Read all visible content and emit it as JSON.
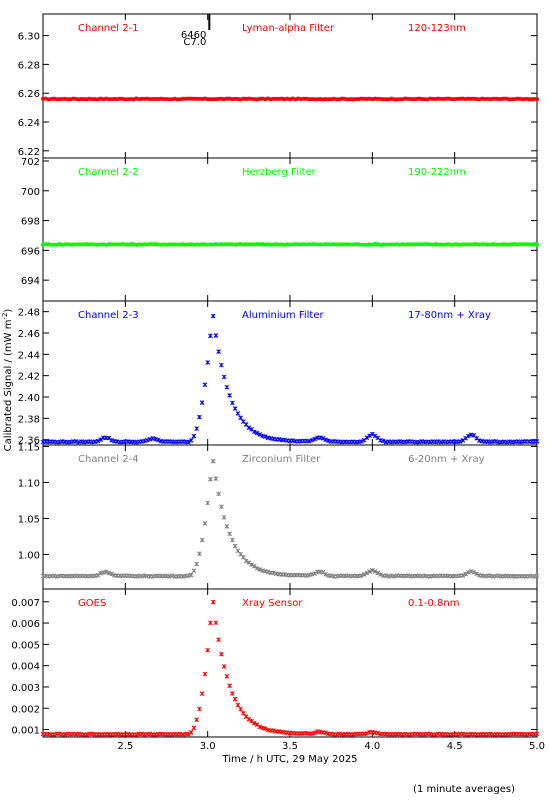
{
  "figure": {
    "ylabel": "Calibrated Signal / (mW m",
    "ylabel_sup": "-2",
    "ylabel_end": ")",
    "xlabel": "Time / h UTC, 29 May 2025",
    "note": "(1 minute averages)",
    "flare_id": "6460",
    "flare_class": "C7.0",
    "flare_time": 3.01
  },
  "chart_data": [
    {
      "type": "scatter",
      "name": "Channel 2-1",
      "filter": "Lyman-alpha Filter",
      "band": "120-123nm",
      "color": "#ff0000",
      "ylim": [
        6.215,
        6.315
      ],
      "yticks": [
        6.22,
        6.24,
        6.26,
        6.28,
        6.3
      ],
      "ytick_labels": [
        "6.22",
        "6.24",
        "6.26",
        "6.28",
        "6.30"
      ],
      "baseline": 6.256,
      "peak": 6.256,
      "bumps": []
    },
    {
      "type": "scatter",
      "name": "Channel 2-2",
      "filter": "Herzberg Filter",
      "band": "190-222nm",
      "color": "#00ff00",
      "ylim": [
        692.6,
        702.2
      ],
      "yticks": [
        694,
        696,
        698,
        700,
        702
      ],
      "ytick_labels": [
        "694",
        "696",
        "698",
        "700",
        "702"
      ],
      "baseline": 696.4,
      "peak": 696.4,
      "bumps": []
    },
    {
      "type": "scatter",
      "name": "Channel 2-3",
      "filter": "Aluminium Filter",
      "band": "17-80nm + Xray",
      "color": "#0000ff",
      "ylim": [
        2.355,
        2.49
      ],
      "yticks": [
        2.36,
        2.38,
        2.4,
        2.42,
        2.44,
        2.46,
        2.48
      ],
      "ytick_labels": [
        "2.36",
        "2.38",
        "2.40",
        "2.42",
        "2.44",
        "2.46",
        "2.48"
      ],
      "baseline": 2.358,
      "peak": 2.48,
      "bumps": [
        [
          2.38,
          0.004
        ],
        [
          2.67,
          0.003
        ],
        [
          3.68,
          0.004
        ],
        [
          4.0,
          0.007
        ],
        [
          4.6,
          0.007
        ]
      ]
    },
    {
      "type": "scatter",
      "name": "Channel 2-4",
      "filter": "Zirconium Filter",
      "band": "6-20nm + Xray",
      "color": "#808080",
      "ylim": [
        0.952,
        1.152
      ],
      "yticks": [
        1.0,
        1.05,
        1.1,
        1.15
      ],
      "ytick_labels": [
        "1.00",
        "1.05",
        "1.10",
        "1.15"
      ],
      "baseline": 0.97,
      "peak": 1.135,
      "bumps": [
        [
          2.38,
          0.006
        ],
        [
          3.68,
          0.006
        ],
        [
          4.0,
          0.008
        ],
        [
          4.6,
          0.006
        ]
      ]
    },
    {
      "type": "scatter",
      "name": "GOES",
      "filter": "Xray Sensor",
      "band": "0.1-0.8nm",
      "color": "#ff0000",
      "ylim": [
        0.00065,
        0.0076
      ],
      "yticks": [
        0.001,
        0.002,
        0.003,
        0.004,
        0.005,
        0.006,
        0.007
      ],
      "ytick_labels": [
        "0.001",
        "0.002",
        "0.003",
        "0.004",
        "0.005",
        "0.006",
        "0.007"
      ],
      "baseline": 0.00078,
      "peak": 0.0072,
      "bumps": [
        [
          3.68,
          0.00012
        ],
        [
          4.0,
          0.0001
        ]
      ]
    }
  ],
  "xaxis": {
    "xlim": [
      2.0,
      5.0
    ],
    "xticks": [
      2.5,
      3.0,
      3.5,
      4.0,
      4.5,
      5.0
    ],
    "xtick_labels": [
      "2.5",
      "3.0",
      "3.5",
      "4.0",
      "4.5",
      "5.0"
    ]
  }
}
